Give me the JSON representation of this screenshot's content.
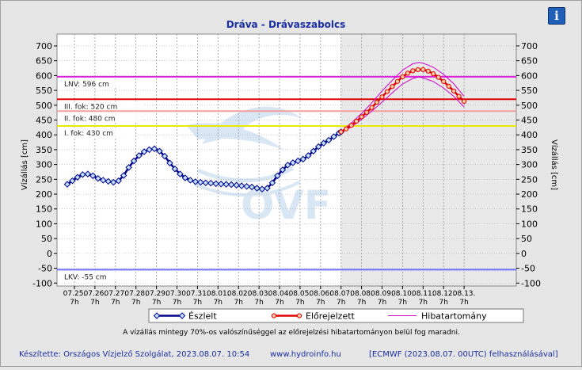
{
  "info_button": {
    "icon": "info-icon",
    "label": "i"
  },
  "chart_data": {
    "type": "line",
    "title": "Dráva - Drávaszabolcs",
    "ylabel": "Vízállás [cm]",
    "ylabel_right": "Vízállás [cm]",
    "ylim": [
      -110,
      740
    ],
    "yticks": [
      700,
      650,
      600,
      550,
      500,
      450,
      400,
      350,
      300,
      250,
      200,
      150,
      100,
      50,
      0,
      -50,
      -100
    ],
    "x_ticks": [
      {
        "date": "07.25.",
        "time": "7h"
      },
      {
        "date": "07.26.",
        "time": "7h"
      },
      {
        "date": "07.27.",
        "time": "7h"
      },
      {
        "date": "07.28.",
        "time": "7h"
      },
      {
        "date": "07.29.",
        "time": "7h"
      },
      {
        "date": "07.30.",
        "time": "7h"
      },
      {
        "date": "07.31.",
        "time": "7h"
      },
      {
        "date": "08.01.",
        "time": "7h"
      },
      {
        "date": "08.02.",
        "time": "7h"
      },
      {
        "date": "08.03.",
        "time": "7h"
      },
      {
        "date": "08.04.",
        "time": "7h"
      },
      {
        "date": "08.05.",
        "time": "7h"
      },
      {
        "date": "08.06.",
        "time": "7h"
      },
      {
        "date": "08.07.",
        "time": "7h"
      },
      {
        "date": "08.08.",
        "time": "7h"
      },
      {
        "date": "08.09.",
        "time": "7h"
      },
      {
        "date": "08.10.",
        "time": "7h"
      },
      {
        "date": "08.11.",
        "time": "7h"
      },
      {
        "date": "08.12.",
        "time": "7h"
      },
      {
        "date": "08.13.",
        "time": "7h"
      }
    ],
    "forecast_start_day": 13,
    "reference_lines": [
      {
        "label": "LNV: 596 cm",
        "value": 596,
        "color": "#dd22dd"
      },
      {
        "label": "III. fok: 520 cm",
        "value": 520,
        "color": "#dd0000"
      },
      {
        "label": "II. fok: 480 cm",
        "value": 480,
        "color": "#f2a0a0"
      },
      {
        "label": "I. fok: 430 cm",
        "value": 430,
        "color": "#e8e800"
      },
      {
        "label": "LKV: -55 cm",
        "value": -55,
        "color": "#7070ff"
      }
    ],
    "series": [
      {
        "name": "Észlelt",
        "color": "#00008b",
        "marker_fill": "#bfe0ff",
        "x": [
          -0.35,
          -0.1,
          0.15,
          0.4,
          0.65,
          0.9,
          1.15,
          1.4,
          1.65,
          1.9,
          2.15,
          2.4,
          2.65,
          2.9,
          3.15,
          3.4,
          3.65,
          3.9,
          4.15,
          4.4,
          4.65,
          4.9,
          5.15,
          5.4,
          5.65,
          5.9,
          6.15,
          6.4,
          6.65,
          6.9,
          7.15,
          7.4,
          7.65,
          7.9,
          8.15,
          8.4,
          8.65,
          8.9,
          9.15,
          9.4,
          9.65,
          9.9,
          10.15,
          10.4,
          10.65,
          10.9,
          11.15,
          11.4,
          11.65,
          11.9,
          12.15,
          12.4,
          12.65,
          12.9,
          13.0
        ],
        "y": [
          233,
          245,
          257,
          266,
          268,
          262,
          253,
          247,
          243,
          240,
          245,
          263,
          290,
          312,
          330,
          343,
          350,
          353,
          345,
          328,
          305,
          285,
          268,
          255,
          247,
          242,
          240,
          238,
          237,
          235,
          234,
          233,
          232,
          230,
          228,
          226,
          224,
          220,
          217,
          220,
          238,
          262,
          282,
          298,
          306,
          312,
          318,
          330,
          345,
          360,
          372,
          382,
          394,
          406,
          410
        ]
      },
      {
        "name": "Előrejelzett",
        "color": "#dd0000",
        "marker_fill": "#ffc8a0",
        "x": [
          13.0,
          13.25,
          13.5,
          13.75,
          14.0,
          14.25,
          14.5,
          14.75,
          15.0,
          15.25,
          15.5,
          15.75,
          16.0,
          16.25,
          16.5,
          16.75,
          17.0,
          17.25,
          17.5,
          17.75,
          18.0,
          18.25,
          18.5,
          18.75,
          19.0
        ],
        "y": [
          410,
          420,
          432,
          446,
          461,
          476,
          492,
          510,
          528,
          546,
          563,
          580,
          596,
          608,
          616,
          620,
          620,
          615,
          606,
          594,
          580,
          564,
          548,
          530,
          513
        ]
      },
      {
        "name": "Hibatartomány",
        "color": "#cc00cc",
        "upper_x": [
          13.0,
          13.5,
          14.0,
          14.5,
          15.0,
          15.5,
          16.0,
          16.5,
          16.8,
          17.0,
          17.5,
          18.0,
          18.5,
          19.0
        ],
        "upper_y": [
          410,
          440,
          472,
          508,
          548,
          584,
          618,
          640,
          644,
          642,
          628,
          604,
          572,
          530
        ],
        "lower_x": [
          13.0,
          13.5,
          14.0,
          14.5,
          15.0,
          15.5,
          16.0,
          16.5,
          16.8,
          17.0,
          17.5,
          18.0,
          18.5,
          19.0
        ],
        "lower_y": [
          410,
          426,
          452,
          480,
          510,
          542,
          572,
          590,
          596,
          592,
          580,
          558,
          530,
          494
        ]
      }
    ],
    "note": "A vízállás mintegy 70%-os valószínűséggel az előrejelzési hibatartományon belül fog maradni."
  },
  "footer": {
    "made_by": "Készítette: Országos Vízjelző Szolgálat, 2023.08.07. 10:54",
    "website": "www.hydroinfo.hu",
    "model": "[ECMWF (2023.08.07. 00UTC) felhasználásával]"
  },
  "watermark": "OVF"
}
